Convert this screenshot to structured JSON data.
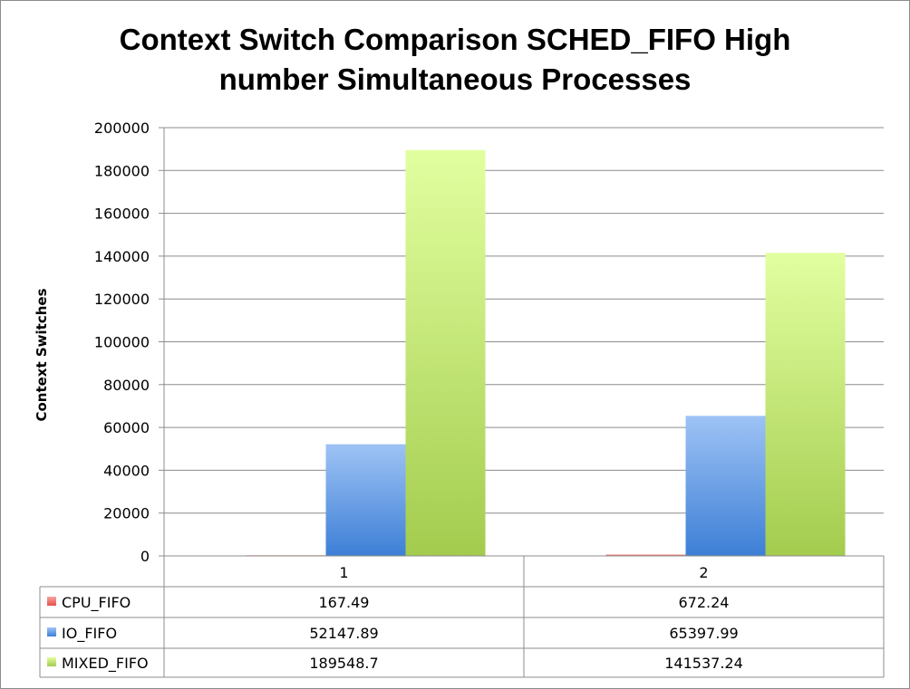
{
  "chart_data": {
    "type": "bar",
    "title_lines": [
      "Context Switch Comparison SCHED_FIFO High",
      "number Simultaneous Processes"
    ],
    "ylabel": "Context Switches",
    "xlabel": "",
    "ylim": [
      0,
      200000
    ],
    "yticks": [
      0,
      20000,
      40000,
      60000,
      80000,
      100000,
      120000,
      140000,
      160000,
      180000,
      200000
    ],
    "grid": true,
    "legend": "data-table",
    "categories": [
      "1",
      "2"
    ],
    "series": [
      {
        "name": "CPU_FIFO",
        "values": [
          167.49,
          672.24
        ],
        "labels": [
          "167.49",
          "672.24"
        ],
        "color": "#e8504a",
        "color_light": "#f5a6a0"
      },
      {
        "name": "IO_FIFO",
        "values": [
          52147.89,
          65397.99
        ],
        "labels": [
          "52147.89",
          "65397.99"
        ],
        "color": "#3d7fd6",
        "color_light": "#9ec3f5"
      },
      {
        "name": "MIXED_FIFO",
        "values": [
          189548.7,
          141537.24
        ],
        "labels": [
          "189548.7",
          "141537.24"
        ],
        "color": "#a3cc4e",
        "color_light": "#e2ffa0"
      }
    ]
  }
}
